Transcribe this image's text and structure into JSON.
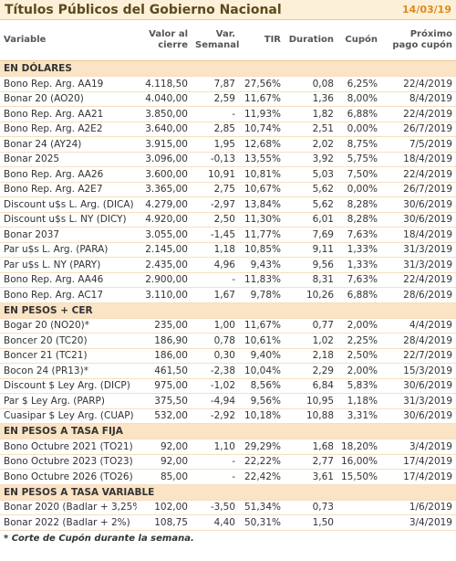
{
  "header": {
    "title": "Títulos Públicos del Gobierno Nacional",
    "date": "14/03/19"
  },
  "table": {
    "columns": [
      "Variable",
      "Valor al cierre",
      "Var. Semanal",
      "TIR",
      "Duration",
      "Cupón",
      "Próximo pago cupón"
    ],
    "sections": [
      {
        "title": "EN DÓLARES",
        "rows": [
          [
            "Bono Rep. Arg. AA19",
            "4.118,50",
            "7,87",
            "27,56%",
            "0,08",
            "6,25%",
            "22/4/2019"
          ],
          [
            "Bonar 20 (AO20)",
            "4.040,00",
            "2,59",
            "11,67%",
            "1,36",
            "8,00%",
            "8/4/2019"
          ],
          [
            "Bono Rep. Arg. AA21",
            "3.850,00",
            "-",
            "11,93%",
            "1,82",
            "6,88%",
            "22/4/2019"
          ],
          [
            "Bono Rep. Arg. A2E2",
            "3.640,00",
            "2,85",
            "10,74%",
            "2,51",
            "0,00%",
            "26/7/2019"
          ],
          [
            "Bonar 24 (AY24)",
            "3.915,00",
            "1,95",
            "12,68%",
            "2,02",
            "8,75%",
            "7/5/2019"
          ],
          [
            "Bonar 2025",
            "3.096,00",
            "-0,13",
            "13,55%",
            "3,92",
            "5,75%",
            "18/4/2019"
          ],
          [
            "Bono Rep. Arg. AA26",
            "3.600,00",
            "10,91",
            "10,81%",
            "5,03",
            "7,50%",
            "22/4/2019"
          ],
          [
            "Bono Rep. Arg. A2E7",
            "3.365,00",
            "2,75",
            "10,67%",
            "5,62",
            "0,00%",
            "26/7/2019"
          ],
          [
            "Discount u$s L. Arg. (DICA)",
            "4.279,00",
            "-2,97",
            "13,84%",
            "5,62",
            "8,28%",
            "30/6/2019"
          ],
          [
            "Discount u$s L. NY (DICY)",
            "4.920,00",
            "2,50",
            "11,30%",
            "6,01",
            "8,28%",
            "30/6/2019"
          ],
          [
            "Bonar 2037",
            "3.055,00",
            "-1,45",
            "11,77%",
            "7,69",
            "7,63%",
            "18/4/2019"
          ],
          [
            "Par u$s L. Arg. (PARA)",
            "2.145,00",
            "1,18",
            "10,85%",
            "9,11",
            "1,33%",
            "31/3/2019"
          ],
          [
            "Par u$s L. NY (PARY)",
            "2.435,00",
            "4,96",
            "9,43%",
            "9,56",
            "1,33%",
            "31/3/2019"
          ],
          [
            "Bono Rep. Arg. AA46",
            "2.900,00",
            "-",
            "11,83%",
            "8,31",
            "7,63%",
            "22/4/2019"
          ],
          [
            "Bono Rep. Arg. AC17",
            "3.110,00",
            "1,67",
            "9,78%",
            "10,26",
            "6,88%",
            "28/6/2019"
          ]
        ]
      },
      {
        "title": "EN PESOS + CER",
        "rows": [
          [
            "Bogar 20 (NO20)*",
            "235,00",
            "1,00",
            "11,67%",
            "0,77",
            "2,00%",
            "4/4/2019"
          ],
          [
            "Boncer 20 (TC20)",
            "186,90",
            "0,78",
            "10,61%",
            "1,02",
            "2,25%",
            "28/4/2019"
          ],
          [
            "Boncer 21 (TC21)",
            "186,00",
            "0,30",
            "9,40%",
            "2,18",
            "2,50%",
            "22/7/2019"
          ],
          [
            "Bocon 24 (PR13)*",
            "461,50",
            "-2,38",
            "10,04%",
            "2,29",
            "2,00%",
            "15/3/2019"
          ],
          [
            "Discount $ Ley Arg. (DICP)",
            "975,00",
            "-1,02",
            "8,56%",
            "6,84",
            "5,83%",
            "30/6/2019"
          ],
          [
            "Par $ Ley Arg. (PARP)",
            "375,50",
            "-4,94",
            "9,56%",
            "10,95",
            "1,18%",
            "31/3/2019"
          ],
          [
            "Cuasipar $ Ley Arg. (CUAP)",
            "532,00",
            "-2,92",
            "10,18%",
            "10,88",
            "3,31%",
            "30/6/2019"
          ]
        ]
      },
      {
        "title": "EN PESOS A TASA FIJA",
        "rows": [
          [
            "Bono Octubre 2021 (TO21)",
            "92,00",
            "1,10",
            "29,29%",
            "1,68",
            "18,20%",
            "3/4/2019"
          ],
          [
            "Bono Octubre 2023 (TO23)",
            "92,00",
            "-",
            "22,22%",
            "2,77",
            "16,00%",
            "17/4/2019"
          ],
          [
            "Bono Octubre 2026 (TO26)",
            "85,00",
            "-",
            "22,42%",
            "3,61",
            "15,50%",
            "17/4/2019"
          ]
        ]
      },
      {
        "title": "EN PESOS A TASA VARIABLE",
        "rows": [
          [
            "Bonar 2020 (Badlar + 3,25%",
            "102,00",
            "-3,50",
            "51,34%",
            "0,73",
            "",
            "1/6/2019"
          ],
          [
            "Bonar 2022 (Badlar + 2%)",
            "108,75",
            "4,40",
            "50,31%",
            "1,50",
            "",
            "3/4/2019"
          ]
        ]
      }
    ]
  },
  "footnote": "* Corte de Cupón durante la semana."
}
